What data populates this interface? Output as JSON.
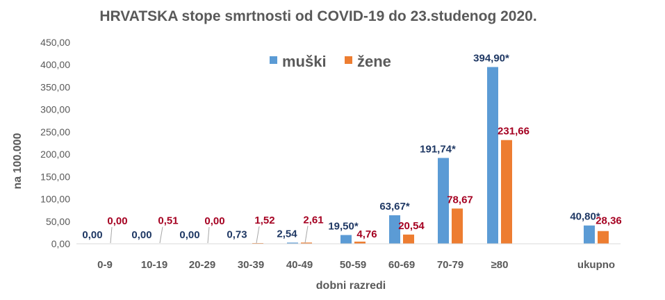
{
  "chart_data": {
    "type": "bar",
    "title": "HRVATSKA stope smrtnosti od COVID-19 do 23.studenog 2020.",
    "xlabel": "dobni razredi",
    "ylabel": "na 100.000",
    "ylim": [
      0,
      450
    ],
    "yticks": [
      "0,00",
      "50,00",
      "100,00",
      "150,00",
      "200,00",
      "250,00",
      "300,00",
      "350,00",
      "400,00",
      "450,00"
    ],
    "yticks_values": [
      0,
      50,
      100,
      150,
      200,
      250,
      300,
      350,
      400,
      450
    ],
    "grid": false,
    "legend_position": "top",
    "categories": [
      "0-9",
      "10-19",
      "20-29",
      "30-39",
      "40-49",
      "50-59",
      "60-69",
      "70-79",
      "≥80",
      "ukupno"
    ],
    "series": [
      {
        "name": "muški",
        "color": "#5B9BD5",
        "label_color": "#1F3864",
        "values": [
          0.0,
          0.0,
          0.0,
          0.73,
          2.54,
          19.5,
          63.67,
          191.74,
          394.9,
          40.8
        ],
        "labels": [
          "0,00",
          "0,00",
          "0,00",
          "0,73",
          "2,54",
          "19,50*",
          "63,67*",
          "191,74*",
          "394,90*",
          "40,80*"
        ]
      },
      {
        "name": "žene",
        "color": "#ED7D31",
        "label_color": "#A50021",
        "values": [
          0.0,
          0.51,
          0.0,
          1.52,
          2.61,
          4.76,
          20.54,
          78.67,
          231.66,
          28.36
        ],
        "labels": [
          "0,00",
          "0,51",
          "0,00",
          "1,52",
          "2,61",
          "4,76",
          "20,54",
          "78,67",
          "231,66",
          "28,36"
        ]
      }
    ]
  }
}
